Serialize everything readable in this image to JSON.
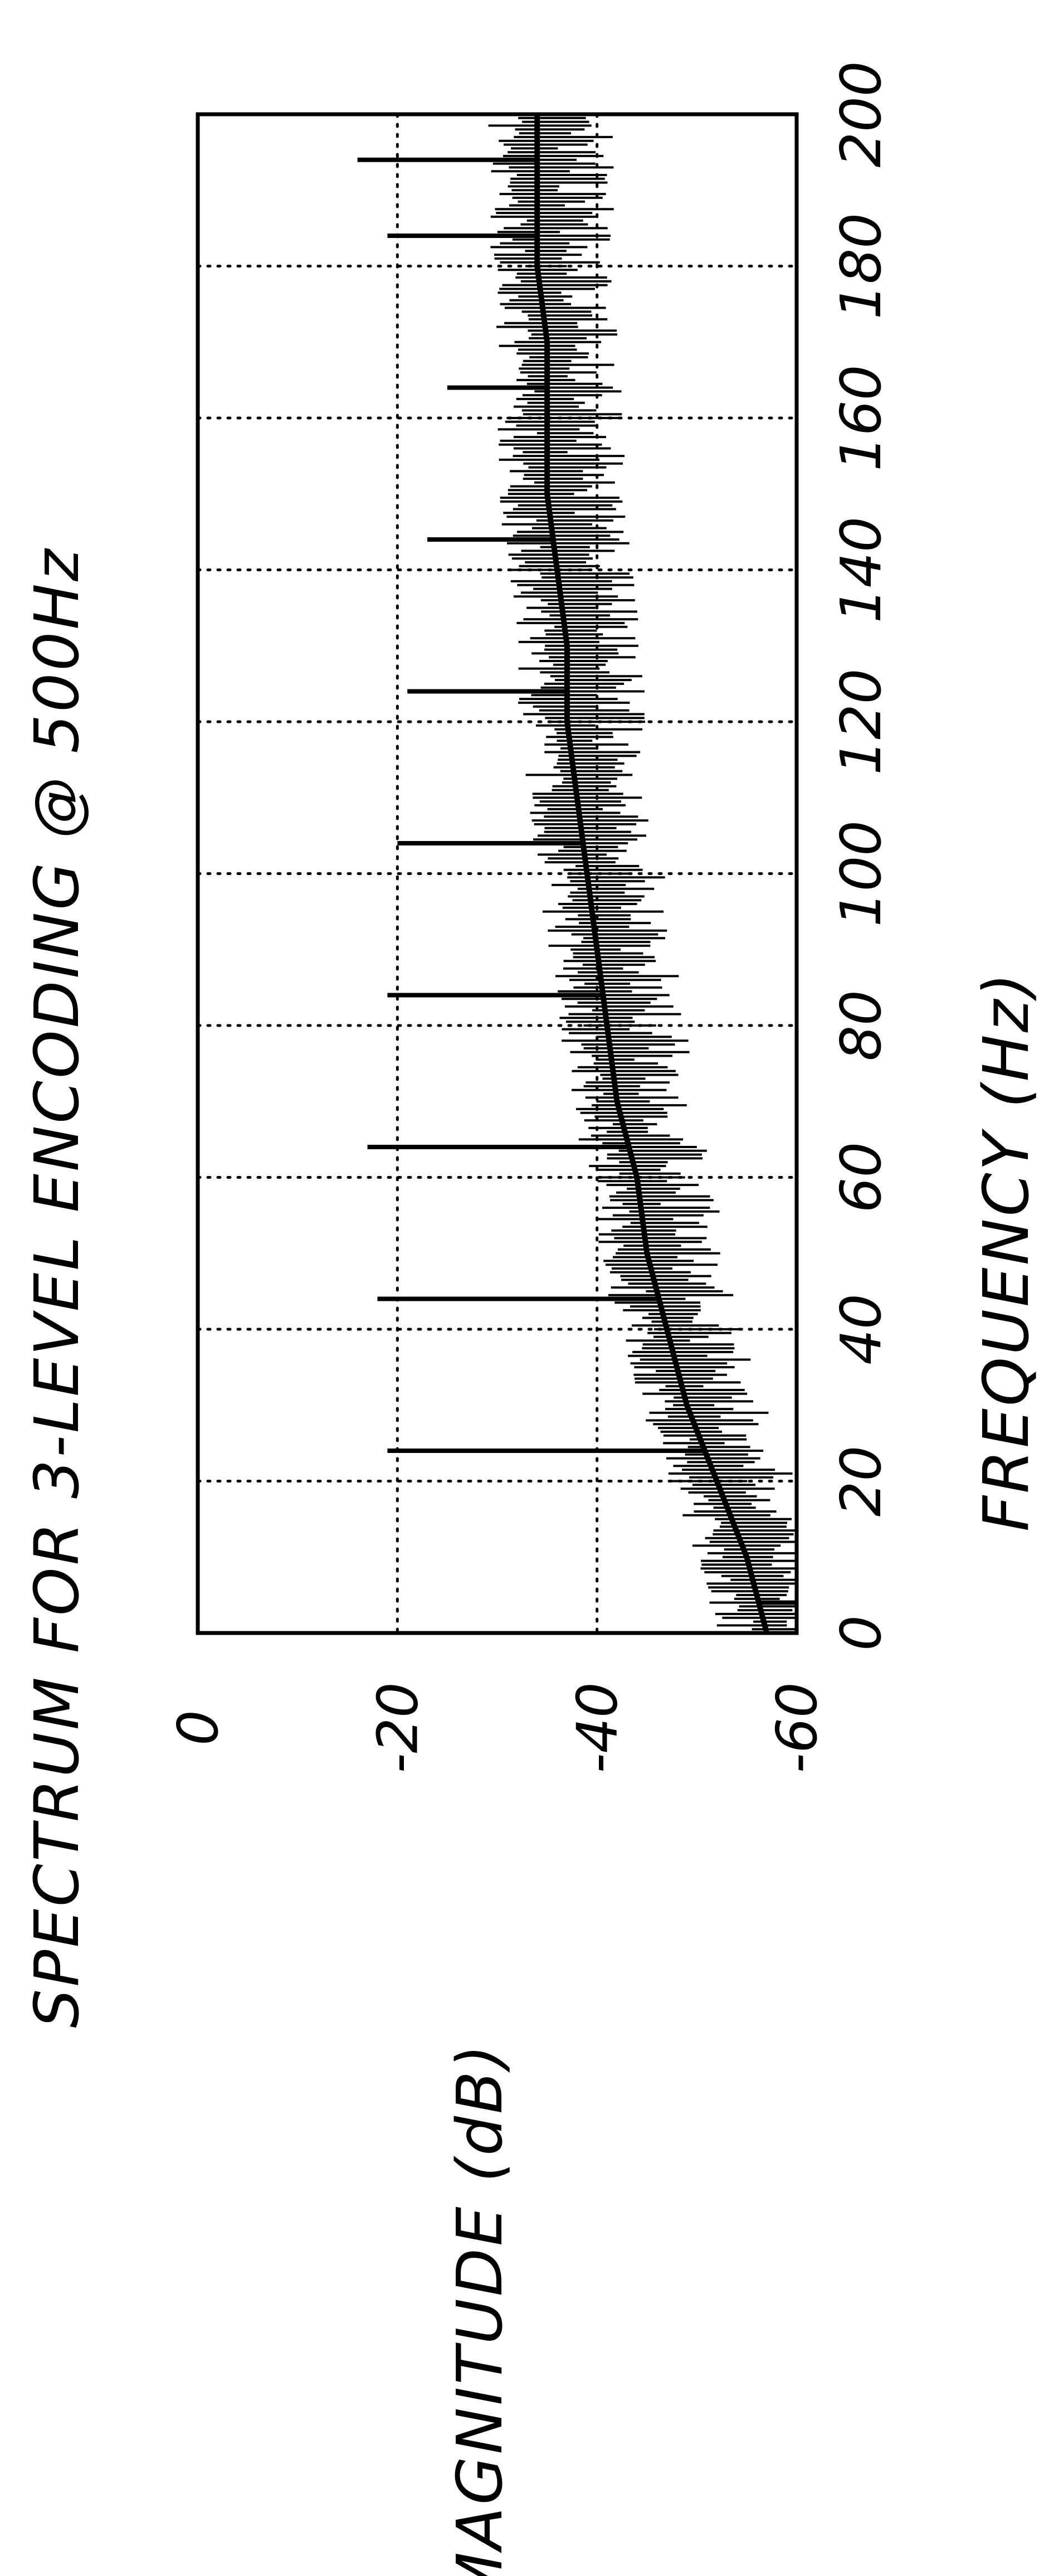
{
  "chart_data": {
    "type": "line",
    "title": "SPECTRUM FOR 3-LEVEL ENCODING @ 500Hz",
    "xlabel": "FREQUENCY (Hz)",
    "ylabel": "MAGNITUDE (dB)",
    "xlim": [
      0,
      200
    ],
    "ylim": [
      -60,
      0
    ],
    "x_ticks": [
      "0",
      "20",
      "40",
      "60",
      "80",
      "100",
      "120",
      "140",
      "160",
      "180",
      "200"
    ],
    "y_ticks": [
      "0",
      "-20",
      "-40",
      "-60"
    ],
    "grid": "dotted",
    "series": [
      {
        "x": [
          0,
          10,
          20,
          30,
          40,
          50,
          60,
          70,
          80,
          90,
          100,
          110,
          120,
          130,
          140,
          150,
          160,
          170,
          180,
          190,
          200
        ],
        "y": [
          -57,
          -55,
          -52,
          -49,
          -47,
          -45,
          -44,
          -42,
          -41,
          -40,
          -39,
          -38,
          -37,
          -37,
          -36,
          -35,
          -35,
          -35,
          -34,
          -34,
          -34
        ]
      }
    ],
    "spikes": {
      "x": [
        4,
        24,
        44,
        64,
        84,
        104,
        124,
        144,
        164,
        184,
        194
      ],
      "y": [
        -60,
        -19,
        -18,
        -17,
        -19,
        -20,
        -21,
        -23,
        -25,
        -19,
        -16
      ]
    }
  }
}
